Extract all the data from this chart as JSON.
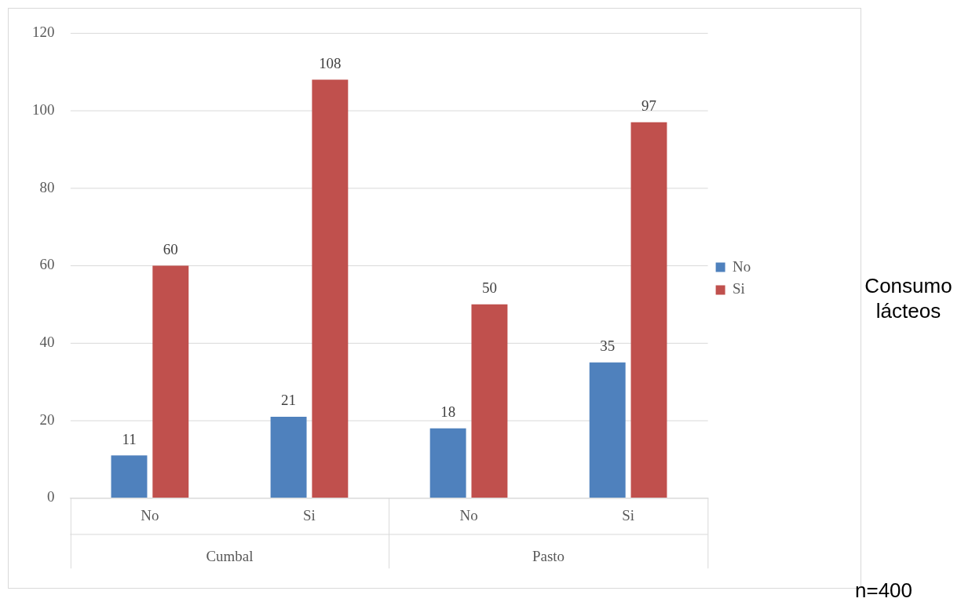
{
  "chart_data": {
    "type": "bar",
    "categories": [
      "No",
      "Si",
      "No",
      "Si"
    ],
    "series": [
      {
        "name": "No",
        "color": "#4f81bd",
        "values": [
          11,
          21,
          18,
          35
        ]
      },
      {
        "name": "Si",
        "color": "#c0504d",
        "values": [
          60,
          108,
          50,
          97
        ]
      }
    ],
    "ylim": [
      0,
      120
    ],
    "yticks": [
      0,
      20,
      40,
      60,
      80,
      100,
      120
    ],
    "grid": "y",
    "legend": "right",
    "legend_title": "Consumo lácteos",
    "data_labels": true,
    "annotations": [
      "Cumbal",
      "Pasto",
      "n=400"
    ]
  }
}
